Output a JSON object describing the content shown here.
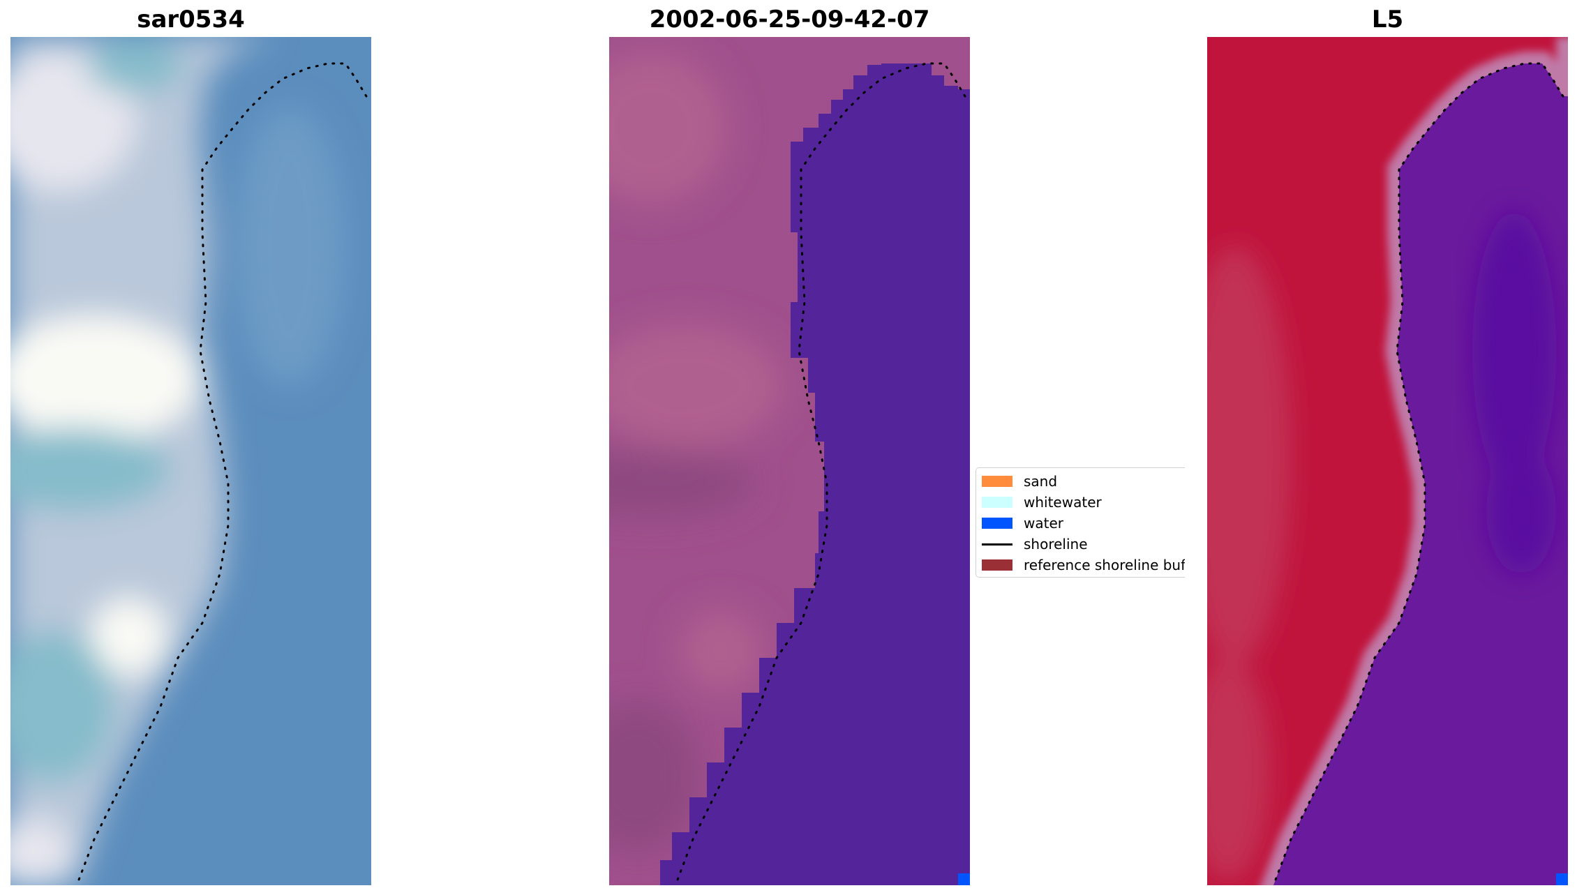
{
  "panels": [
    {
      "title": "sar0534",
      "colors": {
        "land_light": "#e6e6ee",
        "land_mid": "#b9c8da",
        "land_teal": "#86bccb",
        "land_bright": "#fafaf5",
        "water": "#5b8dbd",
        "water_light": "#6d9bc6"
      }
    },
    {
      "title": "2002-06-25-09-42-07",
      "colors": {
        "land": "#a0508c",
        "land_light": "#b0608f",
        "land_dark": "#8e4a80",
        "water": "#54249a",
        "water_pixel": "#0055ff"
      }
    },
    {
      "title": "L5",
      "colors": {
        "land": "#c0143c",
        "land_light": "#c23055",
        "buffer_edge": "#c07aa8",
        "water": "#6a1a9c",
        "water_dark": "#5a10a0",
        "water_pixel": "#0055ff"
      }
    }
  ],
  "legend": {
    "items": [
      {
        "label": "sand",
        "color": "#ff8c3c",
        "kind": "patch"
      },
      {
        "label": "whitewater",
        "color": "#ccffff",
        "kind": "patch"
      },
      {
        "label": "water",
        "color": "#0055ff",
        "kind": "patch"
      },
      {
        "label": "shoreline",
        "color": "#000000",
        "kind": "line"
      },
      {
        "label": "reference shoreline buffer",
        "color": "#9a3036",
        "kind": "patch"
      }
    ]
  }
}
